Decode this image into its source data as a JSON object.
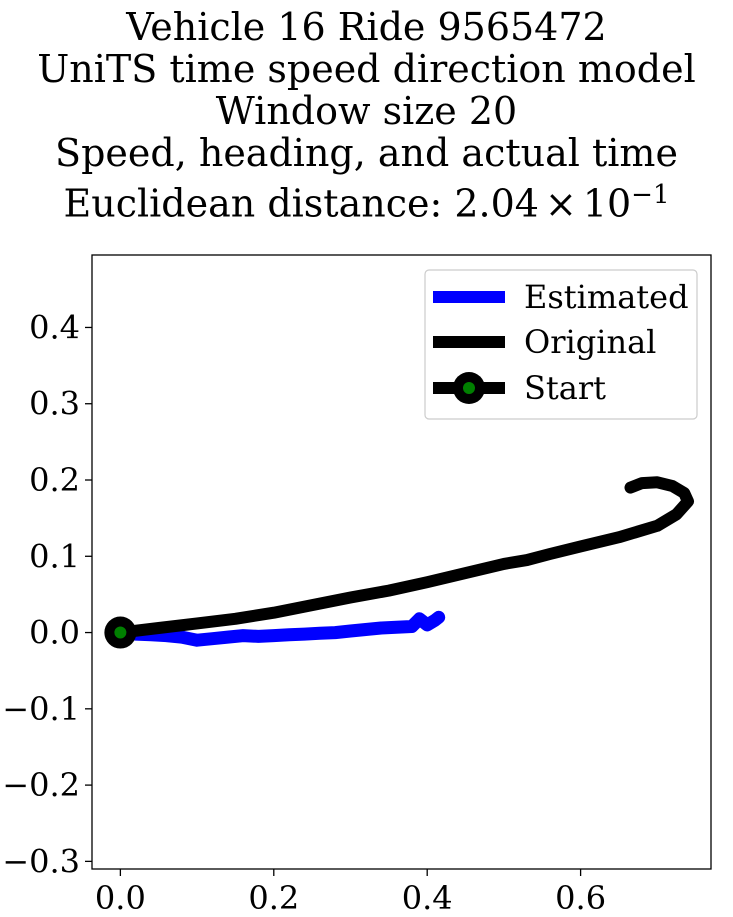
{
  "title_lines": [
    "Vehicle 16 Ride 9565472",
    "UniTS time speed direction model",
    "Window size 20",
    "Speed, heading, and actual time",
    "Euclidean distance: "
  ],
  "distance_mantissa": "2.04",
  "distance_times": "×",
  "distance_base": "10",
  "distance_exponent": "−1",
  "chart_data": {
    "type": "line",
    "xlim": [
      -0.037,
      0.77
    ],
    "ylim": [
      -0.31,
      0.495
    ],
    "x_ticks": [
      0.0,
      0.2,
      0.4,
      0.6
    ],
    "x_tick_labels": [
      "0.0",
      "0.2",
      "0.4",
      "0.6"
    ],
    "y_ticks": [
      -0.3,
      -0.2,
      -0.1,
      0.0,
      0.1,
      0.2,
      0.3,
      0.4
    ],
    "y_tick_labels": [
      "−0.3",
      "−0.2",
      "−0.1",
      "0.0",
      "0.1",
      "0.2",
      "0.3",
      "0.4"
    ],
    "grid": false,
    "legend_position": "top-right",
    "legend": [
      "Estimated",
      "Original",
      "Start"
    ],
    "series": [
      {
        "name": "Estimated",
        "color": "#0000ff",
        "x": [
          0.0,
          0.02,
          0.04,
          0.06,
          0.08,
          0.1,
          0.12,
          0.14,
          0.16,
          0.18,
          0.2,
          0.22,
          0.24,
          0.26,
          0.28,
          0.3,
          0.32,
          0.34,
          0.36,
          0.38,
          0.39,
          0.4,
          0.41,
          0.415
        ],
        "y": [
          0.0,
          -0.002,
          -0.003,
          -0.004,
          -0.006,
          -0.01,
          -0.008,
          -0.006,
          -0.004,
          -0.005,
          -0.004,
          -0.003,
          -0.002,
          -0.001,
          0.0,
          0.002,
          0.004,
          0.006,
          0.007,
          0.008,
          0.018,
          0.01,
          0.016,
          0.02
        ]
      },
      {
        "name": "Original",
        "color": "#000000",
        "x": [
          0.0,
          0.05,
          0.1,
          0.15,
          0.2,
          0.25,
          0.3,
          0.35,
          0.4,
          0.45,
          0.5,
          0.53,
          0.56,
          0.6,
          0.65,
          0.7,
          0.725,
          0.74,
          0.735,
          0.72,
          0.7,
          0.68,
          0.665
        ],
        "y": [
          0.0,
          0.006,
          0.012,
          0.018,
          0.026,
          0.036,
          0.046,
          0.055,
          0.066,
          0.078,
          0.09,
          0.095,
          0.103,
          0.113,
          0.125,
          0.14,
          0.155,
          0.172,
          0.183,
          0.192,
          0.197,
          0.196,
          0.19
        ]
      }
    ],
    "start_point": {
      "name": "Start",
      "x": 0.0,
      "y": 0.0,
      "color": "#008000"
    }
  }
}
